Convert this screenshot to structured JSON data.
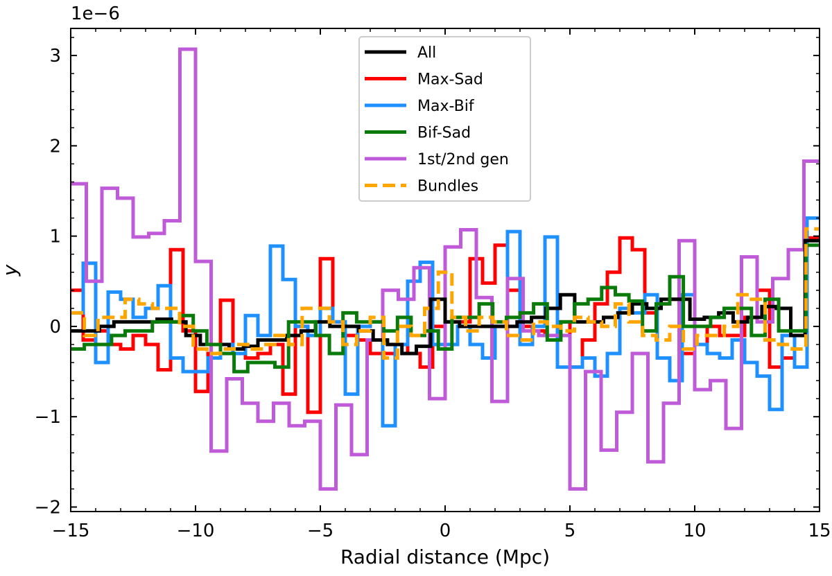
{
  "chart_data": {
    "type": "line",
    "drawstyle": "steps",
    "title": "",
    "xlabel": "Radial distance (Mpc)",
    "ylabel": "y",
    "offset_text": "1e−6",
    "xlim": [
      -15,
      15
    ],
    "ylim": [
      -2.05,
      3.3
    ],
    "xticks": [
      -15,
      -10,
      -5,
      0,
      5,
      10,
      15
    ],
    "xtick_labels": [
      "−15",
      "−10",
      "−5",
      "0",
      "5",
      "10",
      "15"
    ],
    "yticks": [
      -2,
      -1,
      0,
      1,
      2,
      3
    ],
    "ytick_labels": [
      "−2",
      "−1",
      "0",
      "1",
      "2",
      "3"
    ],
    "bin_edges": [
      -15.0,
      -14.5,
      -14.0,
      -13.5,
      -13.0,
      -12.5,
      -12.0,
      -11.5,
      -11.0,
      -10.5,
      -10.0,
      -9.5,
      -9.0,
      -8.5,
      -8.0,
      -7.5,
      -7.0,
      -6.5,
      -6.0,
      -5.5,
      -5.0,
      -4.5,
      -4.0,
      -3.5,
      -3.0,
      -2.5,
      -2.0,
      -1.5,
      -1.0,
      -0.5,
      0.0,
      0.5,
      1.0,
      1.5,
      2.0,
      2.5,
      3.0,
      3.5,
      4.0,
      4.5,
      5.0,
      5.5,
      6.0,
      6.5,
      7.0,
      7.5,
      8.0,
      8.5,
      9.0,
      9.5,
      10.0,
      10.5,
      11.0,
      11.5,
      12.0,
      12.5,
      13.0,
      13.5,
      14.0,
      14.5,
      15.0
    ],
    "legend": {
      "loc": "upper center"
    },
    "series": [
      {
        "name": "Max-Sad",
        "color": "#ff0000",
        "dash": "solid",
        "values": [
          0.4,
          -0.15,
          -0.05,
          -0.2,
          -0.25,
          -0.1,
          -0.2,
          -0.48,
          0.85,
          -0.05,
          -0.72,
          -0.3,
          0.29,
          -0.3,
          -0.35,
          -0.3,
          -0.2,
          -0.75,
          0.0,
          -0.95,
          0.75,
          0.05,
          -0.1,
          -0.15,
          -0.3,
          -0.3,
          -0.2,
          -0.3,
          -0.45,
          0.0,
          0.05,
          0.05,
          0.75,
          0.48,
          0.9,
          0.4,
          0.0,
          -0.05,
          -0.1,
          0.05,
          -0.45,
          -0.15,
          0.25,
          0.6,
          0.98,
          0.85,
          0.15,
          0.25,
          0.3,
          -0.3,
          -0.2,
          0.0,
          -0.1,
          -0.1,
          0.1,
          0.4,
          -0.45,
          -0.35,
          -0.1,
          0.98
        ]
      },
      {
        "name": "Max-Bif",
        "color": "#1e90ff",
        "dash": "solid",
        "values": [
          0.15,
          0.7,
          -0.4,
          0.38,
          0.3,
          0.1,
          0.2,
          0.45,
          -0.35,
          -0.5,
          -0.5,
          -0.35,
          -0.2,
          -0.3,
          0.12,
          -0.1,
          0.89,
          0.52,
          0.0,
          -0.1,
          0.2,
          0.05,
          -0.75,
          0.0,
          0.05,
          -1.1,
          -0.2,
          0.5,
          0.71,
          -0.2,
          -0.2,
          0.0,
          -0.2,
          -0.35,
          0.0,
          1.05,
          -0.2,
          0.0,
          0.99,
          -0.45,
          -0.45,
          -0.35,
          -0.55,
          -0.3,
          0.2,
          0.15,
          0.35,
          -0.35,
          -0.6,
          0.35,
          -0.2,
          -0.3,
          -0.35,
          -0.15,
          -0.4,
          -0.55,
          -0.92,
          -0.1,
          -0.45,
          1.2
        ]
      },
      {
        "name": "1st/2nd gen",
        "color": "#bf5bd8",
        "dash": "solid",
        "values": [
          1.58,
          0.5,
          1.53,
          1.42,
          0.99,
          1.03,
          1.17,
          3.07,
          0.72,
          -1.38,
          -0.58,
          -0.85,
          -1.05,
          -0.85,
          -1.1,
          -1.05,
          -1.8,
          -0.87,
          -1.42,
          -0.15,
          0.4,
          0.3,
          0.65,
          -0.8,
          0.88,
          1.07,
          0.32,
          -0.83,
          0.53,
          -0.05,
          -0.1,
          -0.1,
          -1.8,
          -0.5,
          -1.37,
          -0.95,
          -0.3,
          -1.5,
          -0.85,
          0.95,
          -0.7,
          -0.6,
          -1.13,
          0.77,
          0.05,
          0.53,
          0.85,
          1.83
        ]
      },
      {
        "name": "All",
        "color": "#000000",
        "dash": "solid",
        "values": [
          -0.05,
          -0.05,
          0.0,
          0.05,
          0.05,
          0.05,
          0.08,
          0.05,
          -0.1,
          -0.2,
          -0.2,
          -0.25,
          -0.22,
          -0.15,
          -0.15,
          -0.1,
          -0.05,
          0.05,
          0.0,
          0.0,
          -0.05,
          -0.15,
          -0.2,
          -0.3,
          -0.22,
          0.3,
          0.05,
          0.0,
          0.0,
          0.0,
          0.0,
          0.05,
          0.1,
          0.2,
          0.35,
          0.05,
          0.05,
          0.1,
          0.15,
          0.25,
          0.2,
          0.3,
          0.3,
          0.08,
          0.1,
          0.15,
          0.05,
          0.1,
          0.22,
          0.2,
          -0.1,
          0.95
        ]
      },
      {
        "name": "Bif-Sad",
        "color": "#0a7a0a",
        "dash": "solid",
        "values": [
          -0.25,
          -0.2,
          -0.2,
          -0.1,
          -0.05,
          -0.05,
          0.05,
          0.05,
          0.12,
          -0.05,
          -0.2,
          -0.3,
          -0.5,
          -0.4,
          -0.4,
          -0.45,
          0.05,
          0.05,
          -0.1,
          -0.3,
          0.15,
          0.05,
          0.05,
          -0.05,
          0.1,
          -0.1,
          -0.05,
          -0.25,
          0.1,
          0.1,
          0.25,
          0.05,
          0.1,
          0.15,
          0.25,
          -0.15,
          0.05,
          0.25,
          0.3,
          0.43,
          0.35,
          0.28,
          -0.05,
          0.25,
          0.55,
          0.0,
          0.0,
          0.1,
          0.2,
          0.2,
          -0.1,
          0.3,
          -0.05,
          -0.05,
          0.9
        ]
      },
      {
        "name": "Bundles",
        "color": "#ffa500",
        "dash": "dashed",
        "values": [
          0.15,
          -0.1,
          0.1,
          0.1,
          0.3,
          0.25,
          0.2,
          0.2,
          0.0,
          -0.25,
          -0.3,
          -0.25,
          -0.2,
          -0.25,
          -0.2,
          -0.1,
          -0.2,
          0.2,
          0.2,
          0.05,
          -0.2,
          -0.05,
          0.1,
          -0.35,
          0.0,
          -0.1,
          0.2,
          0.6,
          0.1,
          -0.05,
          0.1,
          0.05,
          -0.1,
          -0.15,
          0.05,
          0.0,
          -0.05,
          0.1,
          0.05,
          0.0,
          0.25,
          0.05,
          -0.1,
          -0.15,
          0.0,
          -0.25,
          -0.1,
          -0.1,
          0.0,
          0.35,
          0.3,
          -0.15,
          -0.2,
          -0.25,
          1.08
        ]
      }
    ]
  }
}
